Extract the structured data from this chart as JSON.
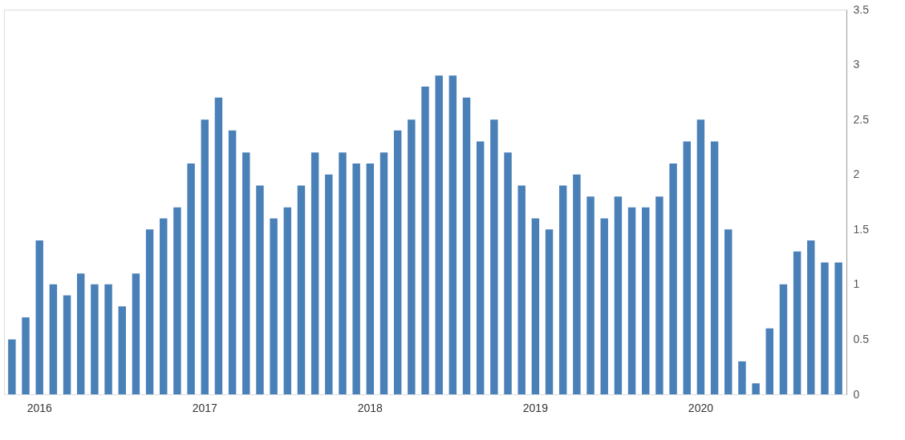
{
  "chart_data": {
    "type": "bar",
    "categories": [
      null,
      null,
      "2016",
      null,
      null,
      null,
      null,
      null,
      null,
      null,
      null,
      null,
      null,
      null,
      "2017",
      null,
      null,
      null,
      null,
      null,
      null,
      null,
      null,
      null,
      null,
      null,
      "2018",
      null,
      null,
      null,
      null,
      null,
      null,
      null,
      null,
      null,
      null,
      null,
      "2019",
      null,
      null,
      null,
      null,
      null,
      null,
      null,
      null,
      null,
      null,
      null,
      "2020",
      null,
      null,
      null,
      null,
      null,
      null,
      null,
      null,
      null,
      null
    ],
    "values": [
      0.5,
      0.7,
      1.4,
      1.0,
      0.9,
      1.1,
      1.0,
      1.0,
      0.8,
      1.1,
      1.5,
      1.6,
      1.7,
      2.1,
      2.5,
      2.7,
      2.4,
      2.2,
      1.9,
      1.6,
      1.7,
      1.9,
      2.2,
      2.0,
      2.2,
      2.1,
      2.1,
      2.2,
      2.4,
      2.5,
      2.8,
      2.9,
      2.9,
      2.7,
      2.3,
      2.5,
      2.2,
      1.9,
      1.6,
      1.5,
      1.9,
      2.0,
      1.8,
      1.6,
      1.8,
      1.7,
      1.7,
      1.8,
      2.1,
      2.3,
      2.5,
      2.3,
      1.5,
      0.3,
      0.1,
      0.6,
      1.0,
      1.3,
      1.4,
      1.2,
      1.2
    ],
    "color": "#4a80b8",
    "ylim": [
      0,
      3.5
    ],
    "yticks": [
      0,
      0.5,
      1,
      1.5,
      2,
      2.5,
      3,
      3.5
    ],
    "grid": false
  }
}
